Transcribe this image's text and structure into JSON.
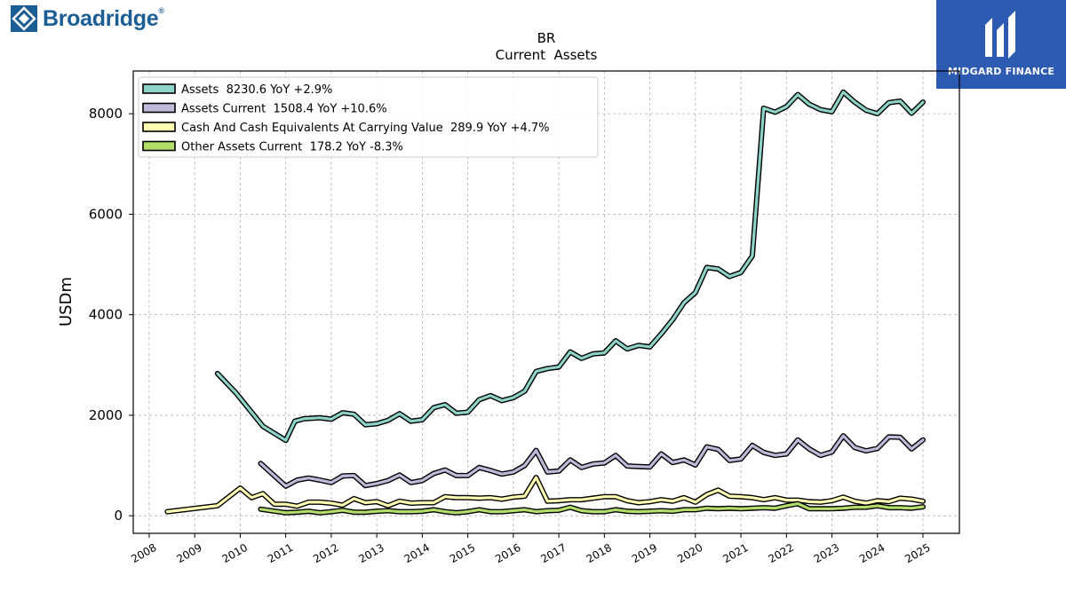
{
  "branding": {
    "left_logo": "Broadridge",
    "left_logo_mark": "®",
    "right_logo": "MIDGARD FINANCE"
  },
  "chart_data": {
    "type": "line",
    "title": "BR",
    "subtitle": "Current  Assets",
    "ylabel": "USDm",
    "xlabel": "",
    "ylim": [
      -350,
      8850
    ],
    "xlim": [
      2007.65,
      2025.8
    ],
    "yticks": [
      0,
      2000,
      4000,
      6000,
      8000
    ],
    "xticks": [
      2008,
      2009,
      2010,
      2011,
      2012,
      2013,
      2014,
      2015,
      2016,
      2017,
      2018,
      2019,
      2020,
      2021,
      2022,
      2023,
      2024,
      2025
    ],
    "grid": true,
    "legend_position": "top-left",
    "series": [
      {
        "name": "Assets  8230.6 YoY +2.9%",
        "color": "#8dd3c7",
        "points": [
          [
            2009.5,
            2830
          ],
          [
            2009.9,
            2450
          ],
          [
            2010.5,
            1780
          ],
          [
            2011.0,
            1500
          ],
          [
            2011.2,
            1880
          ],
          [
            2011.4,
            1930
          ],
          [
            2011.75,
            1950
          ],
          [
            2012.0,
            1920
          ],
          [
            2012.25,
            2050
          ],
          [
            2012.5,
            2020
          ],
          [
            2012.75,
            1810
          ],
          [
            2013.0,
            1830
          ],
          [
            2013.25,
            1900
          ],
          [
            2013.5,
            2030
          ],
          [
            2013.75,
            1880
          ],
          [
            2014.0,
            1910
          ],
          [
            2014.25,
            2150
          ],
          [
            2014.5,
            2210
          ],
          [
            2014.75,
            2040
          ],
          [
            2015.0,
            2060
          ],
          [
            2015.25,
            2310
          ],
          [
            2015.5,
            2390
          ],
          [
            2015.75,
            2290
          ],
          [
            2016.0,
            2350
          ],
          [
            2016.25,
            2480
          ],
          [
            2016.5,
            2870
          ],
          [
            2016.75,
            2930
          ],
          [
            2017.0,
            2960
          ],
          [
            2017.25,
            3260
          ],
          [
            2017.5,
            3130
          ],
          [
            2017.75,
            3220
          ],
          [
            2018.0,
            3240
          ],
          [
            2018.25,
            3480
          ],
          [
            2018.5,
            3320
          ],
          [
            2018.75,
            3390
          ],
          [
            2019.0,
            3360
          ],
          [
            2019.25,
            3620
          ],
          [
            2019.5,
            3900
          ],
          [
            2019.75,
            4240
          ],
          [
            2020.0,
            4440
          ],
          [
            2020.25,
            4940
          ],
          [
            2020.5,
            4910
          ],
          [
            2020.75,
            4760
          ],
          [
            2021.0,
            4840
          ],
          [
            2021.25,
            5170
          ],
          [
            2021.5,
            8110
          ],
          [
            2021.75,
            8030
          ],
          [
            2022.0,
            8140
          ],
          [
            2022.25,
            8380
          ],
          [
            2022.5,
            8190
          ],
          [
            2022.75,
            8080
          ],
          [
            2023.0,
            8040
          ],
          [
            2023.25,
            8430
          ],
          [
            2023.5,
            8230
          ],
          [
            2023.75,
            8070
          ],
          [
            2024.0,
            8000
          ],
          [
            2024.25,
            8220
          ],
          [
            2024.5,
            8250
          ],
          [
            2024.75,
            8010
          ],
          [
            2025.0,
            8230
          ]
        ]
      },
      {
        "name": "Assets Current  1508.4 YoY +10.6%",
        "color": "#bebada",
        "points": [
          [
            2010.45,
            1040
          ],
          [
            2011.0,
            590
          ],
          [
            2011.25,
            710
          ],
          [
            2011.5,
            750
          ],
          [
            2011.75,
            710
          ],
          [
            2012.0,
            660
          ],
          [
            2012.25,
            790
          ],
          [
            2012.5,
            800
          ],
          [
            2012.75,
            600
          ],
          [
            2013.0,
            640
          ],
          [
            2013.25,
            700
          ],
          [
            2013.5,
            810
          ],
          [
            2013.75,
            660
          ],
          [
            2014.0,
            700
          ],
          [
            2014.25,
            840
          ],
          [
            2014.5,
            910
          ],
          [
            2014.75,
            800
          ],
          [
            2015.0,
            800
          ],
          [
            2015.25,
            960
          ],
          [
            2015.5,
            900
          ],
          [
            2015.75,
            830
          ],
          [
            2016.0,
            870
          ],
          [
            2016.25,
            1000
          ],
          [
            2016.5,
            1300
          ],
          [
            2016.75,
            870
          ],
          [
            2017.0,
            890
          ],
          [
            2017.25,
            1110
          ],
          [
            2017.5,
            960
          ],
          [
            2017.75,
            1030
          ],
          [
            2018.0,
            1050
          ],
          [
            2018.25,
            1200
          ],
          [
            2018.5,
            990
          ],
          [
            2018.75,
            980
          ],
          [
            2019.0,
            970
          ],
          [
            2019.25,
            1230
          ],
          [
            2019.5,
            1060
          ],
          [
            2019.75,
            1110
          ],
          [
            2020.0,
            1010
          ],
          [
            2020.25,
            1370
          ],
          [
            2020.5,
            1320
          ],
          [
            2020.75,
            1100
          ],
          [
            2021.0,
            1130
          ],
          [
            2021.25,
            1400
          ],
          [
            2021.5,
            1260
          ],
          [
            2021.75,
            1200
          ],
          [
            2022.0,
            1230
          ],
          [
            2022.25,
            1510
          ],
          [
            2022.5,
            1330
          ],
          [
            2022.75,
            1200
          ],
          [
            2023.0,
            1270
          ],
          [
            2023.25,
            1590
          ],
          [
            2023.5,
            1360
          ],
          [
            2023.75,
            1290
          ],
          [
            2024.0,
            1340
          ],
          [
            2024.25,
            1570
          ],
          [
            2024.5,
            1560
          ],
          [
            2024.75,
            1330
          ],
          [
            2025.0,
            1510
          ]
        ]
      },
      {
        "name": "Cash And Cash Equivalents At Carrying Value  289.9 YoY +4.7%",
        "color": "#ffffb3",
        "points": [
          [
            2008.4,
            80
          ],
          [
            2009.5,
            200
          ],
          [
            2010.0,
            550
          ],
          [
            2010.25,
            360
          ],
          [
            2010.5,
            440
          ],
          [
            2010.75,
            230
          ],
          [
            2011.0,
            230
          ],
          [
            2011.25,
            190
          ],
          [
            2011.5,
            270
          ],
          [
            2011.75,
            270
          ],
          [
            2012.0,
            250
          ],
          [
            2012.25,
            210
          ],
          [
            2012.5,
            340
          ],
          [
            2012.75,
            260
          ],
          [
            2013.0,
            280
          ],
          [
            2013.25,
            200
          ],
          [
            2013.5,
            290
          ],
          [
            2013.75,
            250
          ],
          [
            2014.0,
            260
          ],
          [
            2014.25,
            260
          ],
          [
            2014.5,
            380
          ],
          [
            2014.75,
            360
          ],
          [
            2015.0,
            360
          ],
          [
            2015.25,
            350
          ],
          [
            2015.5,
            360
          ],
          [
            2015.75,
            330
          ],
          [
            2016.0,
            370
          ],
          [
            2016.25,
            390
          ],
          [
            2016.5,
            760
          ],
          [
            2016.75,
            290
          ],
          [
            2017.0,
            300
          ],
          [
            2017.25,
            320
          ],
          [
            2017.5,
            320
          ],
          [
            2017.75,
            350
          ],
          [
            2018.0,
            380
          ],
          [
            2018.25,
            380
          ],
          [
            2018.5,
            300
          ],
          [
            2018.75,
            260
          ],
          [
            2019.0,
            280
          ],
          [
            2019.25,
            320
          ],
          [
            2019.5,
            290
          ],
          [
            2019.75,
            360
          ],
          [
            2020.0,
            270
          ],
          [
            2020.25,
            420
          ],
          [
            2020.5,
            510
          ],
          [
            2020.75,
            390
          ],
          [
            2021.0,
            380
          ],
          [
            2021.25,
            360
          ],
          [
            2021.5,
            320
          ],
          [
            2021.75,
            360
          ],
          [
            2022.0,
            310
          ],
          [
            2022.25,
            310
          ],
          [
            2022.5,
            280
          ],
          [
            2022.75,
            270
          ],
          [
            2023.0,
            300
          ],
          [
            2023.25,
            370
          ],
          [
            2023.5,
            290
          ],
          [
            2023.75,
            250
          ],
          [
            2024.0,
            300
          ],
          [
            2024.25,
            280
          ],
          [
            2024.5,
            350
          ],
          [
            2024.75,
            330
          ],
          [
            2025.0,
            290
          ]
        ]
      },
      {
        "name": "Other Assets Current  178.2 YoY -8.3%",
        "color": "#b3de69",
        "points": [
          [
            2010.45,
            130
          ],
          [
            2011.0,
            60
          ],
          [
            2011.25,
            70
          ],
          [
            2011.5,
            90
          ],
          [
            2011.75,
            60
          ],
          [
            2012.0,
            80
          ],
          [
            2012.25,
            110
          ],
          [
            2012.5,
            70
          ],
          [
            2012.75,
            70
          ],
          [
            2013.0,
            90
          ],
          [
            2013.25,
            100
          ],
          [
            2013.5,
            80
          ],
          [
            2013.75,
            80
          ],
          [
            2014.0,
            90
          ],
          [
            2014.25,
            120
          ],
          [
            2014.5,
            80
          ],
          [
            2014.75,
            60
          ],
          [
            2015.0,
            80
          ],
          [
            2015.25,
            120
          ],
          [
            2015.5,
            80
          ],
          [
            2015.75,
            80
          ],
          [
            2016.0,
            100
          ],
          [
            2016.25,
            120
          ],
          [
            2016.5,
            80
          ],
          [
            2016.75,
            100
          ],
          [
            2017.0,
            110
          ],
          [
            2017.25,
            170
          ],
          [
            2017.5,
            100
          ],
          [
            2017.75,
            80
          ],
          [
            2018.0,
            80
          ],
          [
            2018.25,
            120
          ],
          [
            2018.5,
            90
          ],
          [
            2018.75,
            80
          ],
          [
            2019.0,
            90
          ],
          [
            2019.25,
            100
          ],
          [
            2019.5,
            90
          ],
          [
            2019.75,
            120
          ],
          [
            2020.0,
            120
          ],
          [
            2020.25,
            150
          ],
          [
            2020.5,
            140
          ],
          [
            2020.75,
            150
          ],
          [
            2021.0,
            140
          ],
          [
            2021.25,
            150
          ],
          [
            2021.5,
            160
          ],
          [
            2021.75,
            150
          ],
          [
            2022.0,
            200
          ],
          [
            2022.25,
            240
          ],
          [
            2022.5,
            140
          ],
          [
            2022.75,
            140
          ],
          [
            2023.0,
            140
          ],
          [
            2023.25,
            150
          ],
          [
            2023.5,
            170
          ],
          [
            2023.75,
            170
          ],
          [
            2024.0,
            200
          ],
          [
            2024.25,
            160
          ],
          [
            2024.5,
            160
          ],
          [
            2024.75,
            150
          ],
          [
            2025.0,
            178
          ]
        ]
      }
    ]
  }
}
